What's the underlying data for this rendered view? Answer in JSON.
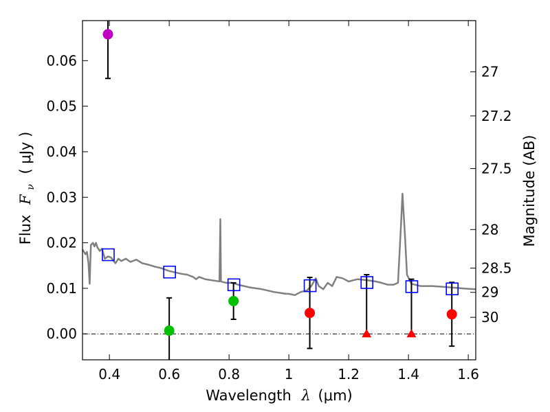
{
  "chart_data": {
    "type": "scatter",
    "xlabel_prefix": "Wavelength",
    "xlabel_symbol": "λ",
    "xlabel_unit": "(μm)",
    "ylabel_prefix": "Flux",
    "ylabel_symbol": "F",
    "ylabel_sub": "ν",
    "ylabel_unit": "( μJy )",
    "y2label": "Magnitude (AB)",
    "xlim": [
      0.31,
      1.625
    ],
    "ylim": [
      -0.0057,
      0.0688
    ],
    "x_ticks": [
      0.4,
      0.6,
      0.8,
      1.0,
      1.2,
      1.4,
      1.6
    ],
    "x_tick_labels": [
      "0.4",
      "0.6",
      "0.8",
      "1",
      "1.2",
      "1.4",
      "1.6"
    ],
    "y_ticks": [
      0.0,
      0.01,
      0.02,
      0.03,
      0.04,
      0.05,
      0.06
    ],
    "y_tick_labels": [
      "0.00",
      "0.01",
      "0.02",
      "0.03",
      "0.04",
      "0.05",
      "0.06"
    ],
    "mag_ticks": [
      27,
      27.2,
      27.5,
      28,
      28.5,
      29,
      30
    ],
    "mag_tick_labels": [
      "27",
      "27.2",
      "27.5",
      "28",
      "28.5",
      "29",
      "30"
    ],
    "zero_line": 0.0,
    "colors": {
      "template": "#808080",
      "model": "#0000ff",
      "purple": "#bf00bf",
      "green": "#00c000",
      "red": "#ff0000",
      "errorbar": "#000000"
    },
    "template_spectrum": [
      [
        0.31,
        0.0185
      ],
      [
        0.32,
        0.0175
      ],
      [
        0.325,
        0.018
      ],
      [
        0.33,
        0.0155
      ],
      [
        0.334,
        0.011
      ],
      [
        0.338,
        0.0195
      ],
      [
        0.345,
        0.02
      ],
      [
        0.35,
        0.0192
      ],
      [
        0.355,
        0.02
      ],
      [
        0.36,
        0.019
      ],
      [
        0.368,
        0.0182
      ],
      [
        0.375,
        0.0187
      ],
      [
        0.385,
        0.0165
      ],
      [
        0.395,
        0.017
      ],
      [
        0.405,
        0.0168
      ],
      [
        0.42,
        0.0155
      ],
      [
        0.43,
        0.0165
      ],
      [
        0.44,
        0.016
      ],
      [
        0.455,
        0.0165
      ],
      [
        0.47,
        0.0158
      ],
      [
        0.49,
        0.0163
      ],
      [
        0.51,
        0.0155
      ],
      [
        0.53,
        0.0152
      ],
      [
        0.55,
        0.0148
      ],
      [
        0.57,
        0.0145
      ],
      [
        0.6,
        0.0138
      ],
      [
        0.62,
        0.0135
      ],
      [
        0.64,
        0.0132
      ],
      [
        0.66,
        0.013
      ],
      [
        0.68,
        0.0125
      ],
      [
        0.69,
        0.012
      ],
      [
        0.7,
        0.0125
      ],
      [
        0.72,
        0.012
      ],
      [
        0.74,
        0.0118
      ],
      [
        0.76,
        0.0116
      ],
      [
        0.768,
        0.0115
      ],
      [
        0.771,
        0.0252
      ],
      [
        0.773,
        0.0115
      ],
      [
        0.79,
        0.0112
      ],
      [
        0.81,
        0.0112
      ],
      [
        0.83,
        0.0108
      ],
      [
        0.85,
        0.0105
      ],
      [
        0.87,
        0.0102
      ],
      [
        0.89,
        0.01
      ],
      [
        0.91,
        0.0098
      ],
      [
        0.93,
        0.0095
      ],
      [
        0.95,
        0.0092
      ],
      [
        0.97,
        0.009
      ],
      [
        0.99,
        0.0088
      ],
      [
        1.0,
        0.0088
      ],
      [
        1.02,
        0.0085
      ],
      [
        1.04,
        0.0092
      ],
      [
        1.06,
        0.0095
      ],
      [
        1.075,
        0.0105
      ],
      [
        1.09,
        0.0122
      ],
      [
        1.1,
        0.0105
      ],
      [
        1.115,
        0.0098
      ],
      [
        1.13,
        0.0112
      ],
      [
        1.145,
        0.0105
      ],
      [
        1.16,
        0.0125
      ],
      [
        1.18,
        0.0122
      ],
      [
        1.2,
        0.0115
      ],
      [
        1.23,
        0.012
      ],
      [
        1.26,
        0.0118
      ],
      [
        1.29,
        0.0115
      ],
      [
        1.31,
        0.0112
      ],
      [
        1.33,
        0.0108
      ],
      [
        1.35,
        0.0108
      ],
      [
        1.365,
        0.0112
      ],
      [
        1.375,
        0.024
      ],
      [
        1.38,
        0.0308
      ],
      [
        1.388,
        0.022
      ],
      [
        1.395,
        0.013
      ],
      [
        1.41,
        0.011
      ],
      [
        1.44,
        0.0105
      ],
      [
        1.48,
        0.0105
      ],
      [
        1.52,
        0.0103
      ],
      [
        1.56,
        0.0101
      ],
      [
        1.6,
        0.0099
      ],
      [
        1.625,
        0.0098
      ]
    ],
    "series": [
      {
        "name": "model-photometry",
        "marker": "square",
        "color": "#0000ff",
        "x": [
          0.395,
          0.6,
          0.815,
          1.07,
          1.26,
          1.41,
          1.545
        ],
        "y": [
          0.0173,
          0.0135,
          0.0107,
          0.0105,
          0.0112,
          0.0103,
          0.0098
        ]
      },
      {
        "name": "purple-point",
        "marker": "circle",
        "color": "#bf00bf",
        "x": [
          0.395
        ],
        "y": [
          0.0658
        ],
        "err": [
          0.0097
        ]
      },
      {
        "name": "green-points",
        "marker": "circle",
        "color": "#00c000",
        "x": [
          0.6,
          0.815
        ],
        "y": [
          0.0007,
          0.0072
        ],
        "err": [
          0.0072,
          0.004
        ]
      },
      {
        "name": "red-points",
        "marker": "circle",
        "color": "#ff0000",
        "x": [
          1.07,
          1.545
        ],
        "y": [
          0.0046,
          0.0043
        ],
        "err": [
          0.0078,
          0.007
        ]
      },
      {
        "name": "upper-limits",
        "marker": "triangle",
        "color": "#ff0000",
        "x": [
          1.26,
          1.41
        ],
        "y": [
          0.0,
          0.0
        ],
        "err_up": [
          0.013,
          0.012
        ]
      }
    ]
  }
}
